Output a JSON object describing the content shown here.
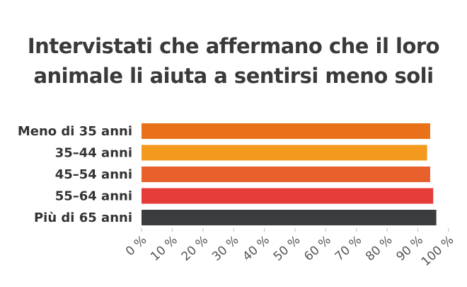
{
  "chart_data": {
    "type": "bar",
    "orientation": "horizontal",
    "title": "Intervistati che affermano che il loro\nanimale li aiuta a sentirsi meno soli",
    "categories": [
      "Meno di 35 anni",
      "35–44 anni",
      "45–54 anni",
      "55–64 anni",
      "Più di 65 anni"
    ],
    "values": [
      94,
      93,
      94,
      95,
      96
    ],
    "colors": [
      "#E8711A",
      "#F39A1E",
      "#E8602C",
      "#E53C3A",
      "#3A3C3D"
    ],
    "xlim": [
      0,
      100
    ],
    "ticks": [
      "0 %",
      "10 %",
      "20 %",
      "30 %",
      "40 %",
      "50 %",
      "60 %",
      "70 %",
      "80 %",
      "90 %",
      "100 %"
    ],
    "grid": false,
    "legend": "none"
  }
}
